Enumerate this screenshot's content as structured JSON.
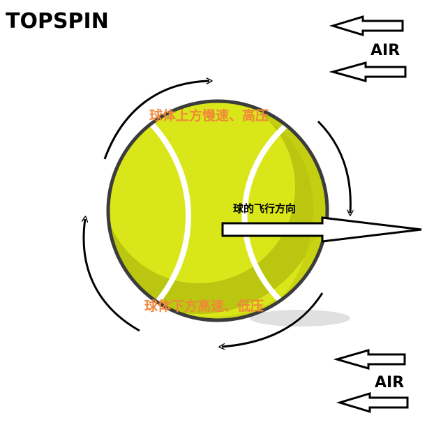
{
  "title": "TOPSPIN",
  "air_top": "AIR",
  "air_bottom": "AIR",
  "ball_top_text": "球体上方慢速、高压",
  "ball_bottom_text": "球体下方高速、低压",
  "flight_direction_text": "球的飞行方向",
  "colors": {
    "ball": "#d9e61a",
    "ball_shadow": "#b8c40f",
    "ball_outline": "#3c3c3c",
    "seam": "#ffffff",
    "label_orange": "#f0883a",
    "arrow": "#000000"
  }
}
